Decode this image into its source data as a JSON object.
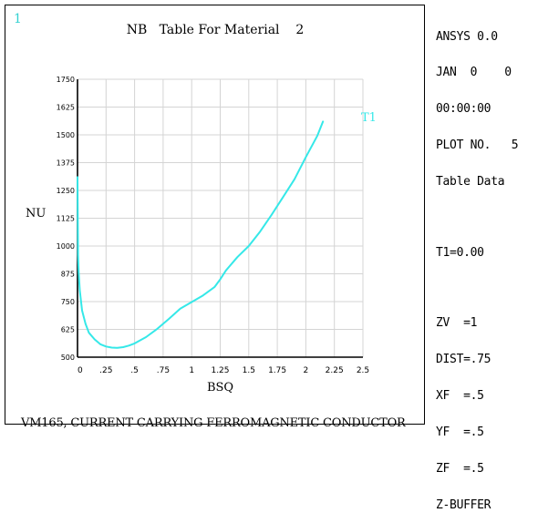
{
  "window_number": "1",
  "chart_data": {
    "type": "line",
    "title": "NB   Table For Material    2",
    "xlabel": "BSQ",
    "ylabel": "NU",
    "xlim": [
      0,
      2.5
    ],
    "ylim": [
      500,
      1750
    ],
    "x_ticks": [
      0,
      0.25,
      0.5,
      0.75,
      1,
      1.25,
      1.5,
      1.75,
      2,
      2.25,
      2.5
    ],
    "x_tick_labels": [
      "0",
      ".25",
      ".5",
      ".75",
      "1",
      "1.25",
      "1.5",
      "1.75",
      "2",
      "2.25",
      "2.5"
    ],
    "y_ticks": [
      500,
      625,
      750,
      875,
      1000,
      1125,
      1250,
      1375,
      1500,
      1625,
      1750
    ],
    "y_tick_labels": [
      "500",
      "625",
      "750",
      "875",
      "1000",
      "1125",
      "1250",
      "1375",
      "1500",
      "1625",
      "1750"
    ],
    "grid": true,
    "line_color": "#35e8e8",
    "series": [
      {
        "name": "T1",
        "x": [
          0,
          0.005,
          0.01,
          0.02,
          0.04,
          0.07,
          0.1,
          0.15,
          0.2,
          0.25,
          0.3,
          0.35,
          0.4,
          0.45,
          0.5,
          0.6,
          0.7,
          0.8,
          0.9,
          1.0,
          1.1,
          1.2,
          1.25,
          1.3,
          1.4,
          1.5,
          1.6,
          1.7,
          1.8,
          1.9,
          2.0,
          2.1,
          2.15
        ],
        "y": [
          1310,
          960,
          880,
          800,
          710,
          650,
          610,
          580,
          558,
          548,
          543,
          542,
          545,
          552,
          562,
          590,
          628,
          672,
          718,
          748,
          778,
          815,
          850,
          890,
          950,
          1000,
          1065,
          1140,
          1220,
          1300,
          1400,
          1495,
          1560
        ]
      }
    ]
  },
  "sidebar": {
    "lines_1": [
      "ANSYS 0.0",
      "JAN  0    0",
      "00:00:00",
      "PLOT NO.   5",
      "Table Data"
    ],
    "lines_2": [
      "T1=0.00"
    ],
    "lines_3": [
      "ZV  =1",
      "DIST=.75",
      "XF  =.5",
      "YF  =.5",
      "ZF  =.5",
      "Z-BUFFER"
    ]
  },
  "caption": "VM165, CURRENT CARRYING FERROMAGNETIC CONDUCTOR"
}
